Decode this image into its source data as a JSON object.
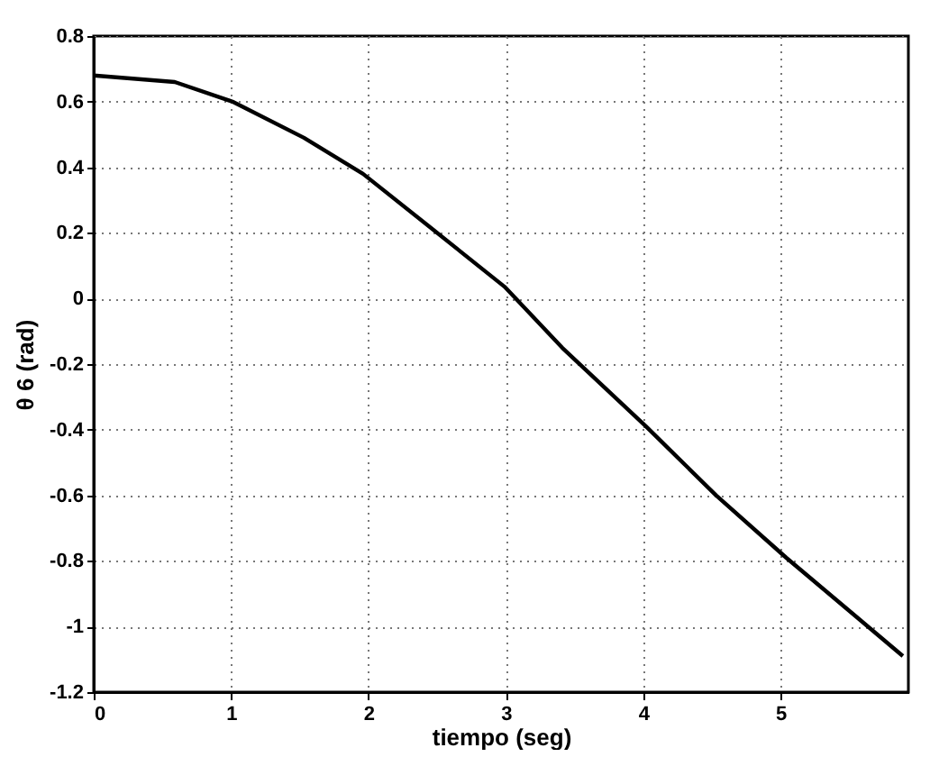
{
  "chart_data": {
    "type": "line",
    "xlabel": "tiempo (seg)",
    "ylabel": "θ 6 (rad)",
    "x": [
      0,
      0.59,
      1.01,
      1.53,
      1.96,
      2.47,
      2.99,
      3.41,
      4.02,
      4.53,
      5.04,
      5.55,
      5.89
    ],
    "series": [
      {
        "color": "#000000",
        "values": [
          0.68,
          0.66,
          0.6,
          0.49,
          0.38,
          0.21,
          0.036,
          -0.15,
          -0.39,
          -0.6,
          -0.79,
          -0.97,
          -1.09
        ]
      }
    ],
    "xlim": [
      0,
      5.93
    ],
    "xticks": [
      0,
      1,
      2,
      3,
      4,
      5
    ],
    "ylim": [
      -1.2,
      0.8
    ],
    "yticks": [
      -1.2,
      -1,
      -0.8,
      -0.6,
      -0.4,
      -0.2,
      0,
      0.2,
      0.4,
      0.6,
      0.8
    ],
    "grid": true,
    "line_style": "solid"
  }
}
